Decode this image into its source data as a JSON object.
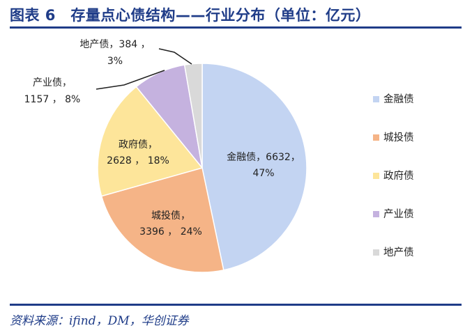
{
  "header": {
    "title": "图表 6　存量点心债结构——行业分布（单位：亿元）"
  },
  "footer": {
    "source": "资料来源：ifind，DM，华创证券"
  },
  "colors": {
    "accent": "#1f3c88",
    "slices": [
      "#c3d4f2",
      "#f5b487",
      "#fde59a",
      "#c5b2df",
      "#d9d9d9"
    ]
  },
  "chart_data": {
    "type": "pie",
    "title": "存量点心债结构——行业分布（单位：亿元）",
    "unit": "亿元",
    "legend_position": "right",
    "slices": [
      {
        "name": "金融债",
        "value": 6632,
        "percent": "47%",
        "label_line1": "金融债，6632，",
        "label_line2": "47%"
      },
      {
        "name": "城投债",
        "value": 3396,
        "percent": "24%",
        "label_line1": "城投债，",
        "label_line2": "3396 ， 24%"
      },
      {
        "name": "政府债",
        "value": 2628,
        "percent": "18%",
        "label_line1": "政府债，",
        "label_line2": "2628 ， 18%"
      },
      {
        "name": "产业债",
        "value": 1157,
        "percent": "8%",
        "label_line1": "产业债，",
        "label_line2": "1157 ， 8%"
      },
      {
        "name": "地产债",
        "value": 384,
        "percent": "3%",
        "label_line1": "地产债，384 ，",
        "label_line2": "3%"
      }
    ]
  }
}
